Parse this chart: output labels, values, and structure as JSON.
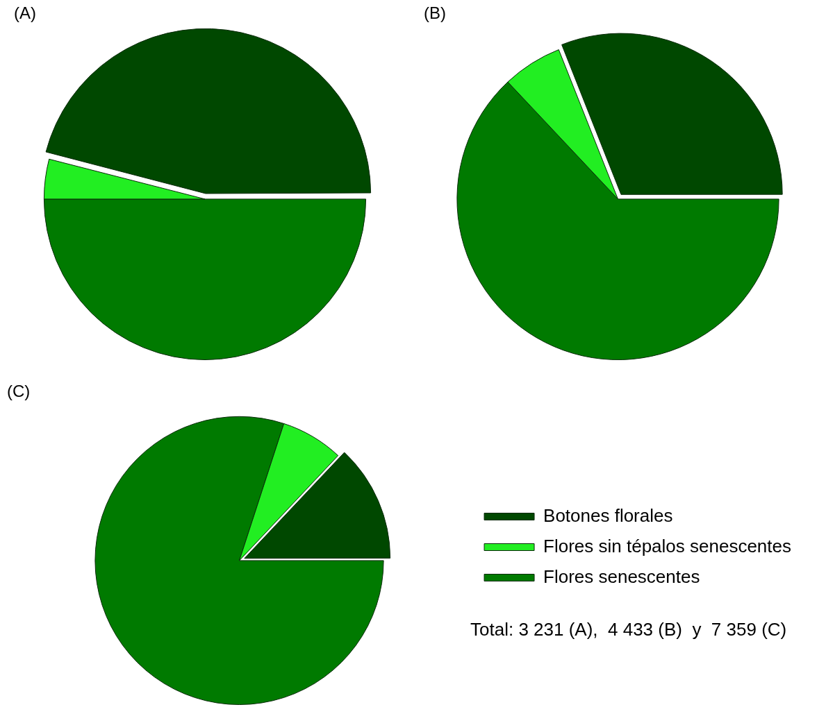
{
  "chart_data": [
    {
      "type": "pie",
      "title": "(A)",
      "categories": [
        null,
        null,
        null
      ],
      "values": [
        46,
        4,
        50
      ],
      "colors": [
        "#004800",
        "#22ee22",
        "#007a00"
      ]
    },
    {
      "type": "pie",
      "title": "(B)",
      "categories": [
        null,
        null,
        null
      ],
      "values": [
        31,
        6,
        63
      ],
      "colors": [
        "#004800",
        "#22ee22",
        "#007a00"
      ]
    },
    {
      "type": "pie",
      "title": "(C)",
      "categories": [
        "Botones florales",
        "Flores sin tépalos senescentes",
        "Flores senescentes"
      ],
      "values": [
        13,
        7,
        80
      ],
      "colors": [
        "#004800",
        "#22ee22",
        "#007a00"
      ],
      "legend": "right",
      "annotations": [
        "Total: 3 231 (A),  4 433 (B)  y  7 359 (C)"
      ]
    }
  ]
}
